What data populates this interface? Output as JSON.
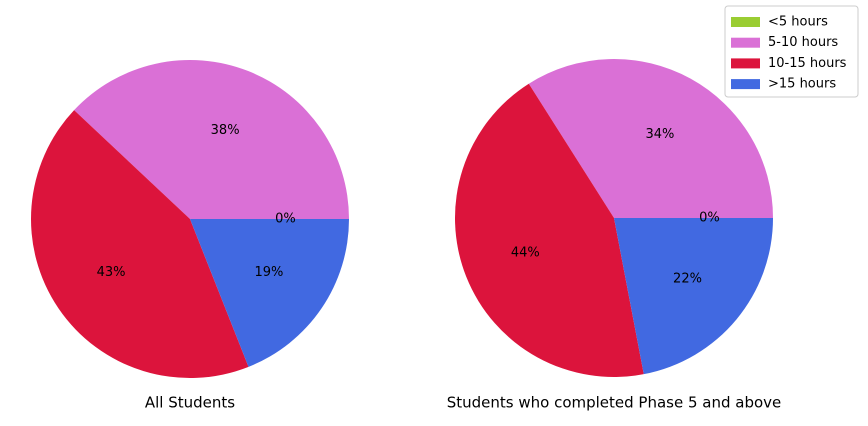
{
  "chart_data": [
    {
      "type": "pie",
      "title": "All Students",
      "values": [
        0,
        38,
        43,
        19
      ],
      "value_labels": [
        "0%",
        "38%",
        "43%",
        "19%"
      ]
    },
    {
      "type": "pie",
      "title": "Students who completed Phase 5 and above",
      "values": [
        0,
        34,
        44,
        22
      ],
      "value_labels": [
        "0%",
        "34%",
        "44%",
        "22%"
      ]
    }
  ],
  "legend": {
    "labels": [
      "<5 hours",
      "5-10 hours",
      "10-15 hours",
      ">15 hours"
    ],
    "colors": [
      "#9acd32",
      "#da70d6",
      "#dc143c",
      "#4169e1"
    ],
    "position": "upper right"
  }
}
